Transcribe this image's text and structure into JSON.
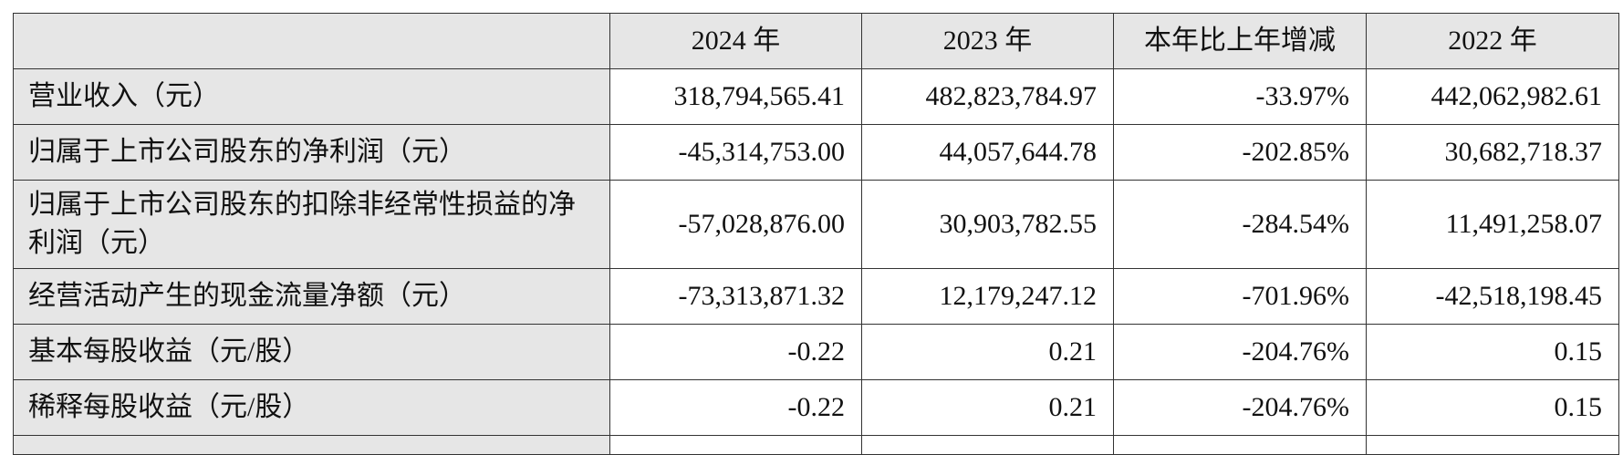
{
  "table": {
    "columns": [
      "2024 年",
      "2023 年",
      "本年比上年增减",
      "2022 年"
    ],
    "rows": [
      {
        "label": "营业收入（元）",
        "values": [
          "318,794,565.41",
          "482,823,784.97",
          "-33.97%",
          "442,062,982.61"
        ]
      },
      {
        "label": "归属于上市公司股东的净利润（元）",
        "values": [
          "-45,314,753.00",
          "44,057,644.78",
          "-202.85%",
          "30,682,718.37"
        ]
      },
      {
        "label": "归属于上市公司股东的扣除非经常性损益的净利润（元）",
        "values": [
          "-57,028,876.00",
          "30,903,782.55",
          "-284.54%",
          "11,491,258.07"
        ]
      },
      {
        "label": "经营活动产生的现金流量净额（元）",
        "values": [
          "-73,313,871.32",
          "12,179,247.12",
          "-701.96%",
          "-42,518,198.45"
        ]
      },
      {
        "label": "基本每股收益（元/股）",
        "values": [
          "-0.22",
          "0.21",
          "-204.76%",
          "0.15"
        ]
      },
      {
        "label": "稀释每股收益（元/股）",
        "values": [
          "-0.22",
          "0.21",
          "-204.76%",
          "0.15"
        ]
      }
    ]
  }
}
